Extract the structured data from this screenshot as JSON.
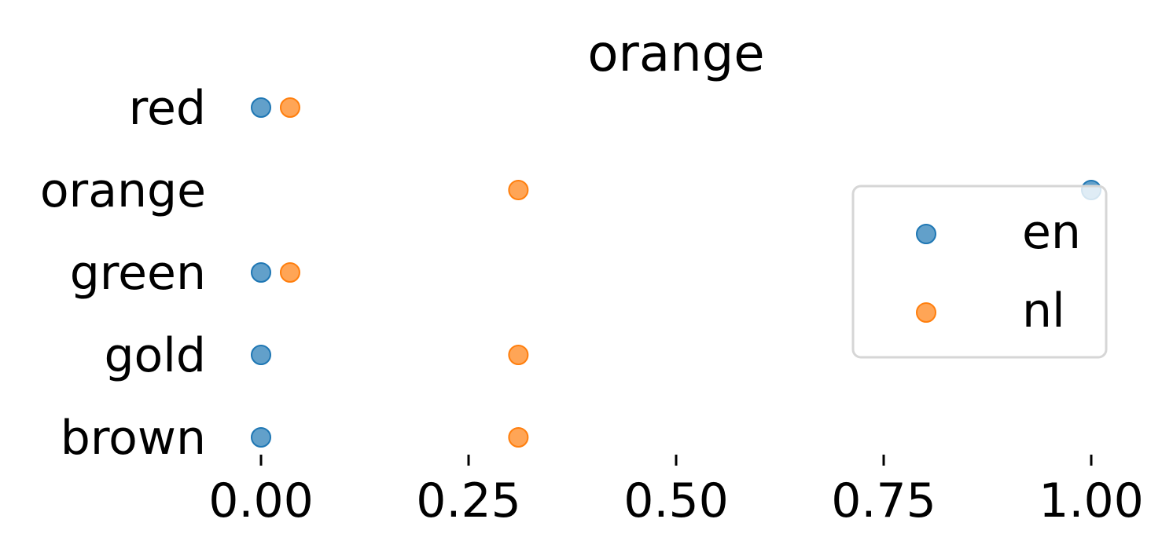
{
  "chart_data": {
    "type": "scatter",
    "title": "orange",
    "xlabel": "",
    "ylabel": "",
    "categories": [
      "red",
      "orange",
      "green",
      "gold",
      "brown"
    ],
    "xlim": [
      0,
      1
    ],
    "xticks": [
      "0.00",
      "0.25",
      "0.50",
      "0.75",
      "1.00"
    ],
    "grid": false,
    "legend_position": "right",
    "series": [
      {
        "name": "en",
        "color": "#1f77b4",
        "values": [
          0.0,
          1.0,
          0.0,
          0.0,
          0.0
        ]
      },
      {
        "name": "nl",
        "color": "#ff7f0e",
        "values": [
          0.035,
          0.31,
          0.035,
          0.31,
          0.31
        ]
      }
    ]
  }
}
